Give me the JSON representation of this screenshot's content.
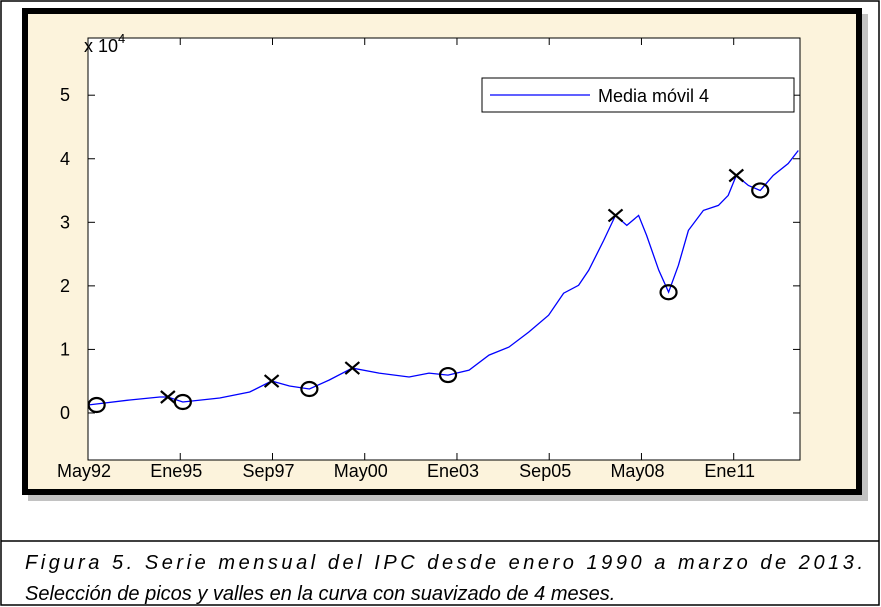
{
  "chart_data": {
    "type": "line",
    "series": [
      {
        "name": "Media móvil 4",
        "color": "#0000ff",
        "x": [
          28,
          42.5,
          52.9,
          55.7,
          60.9,
          73.7,
          84.1,
          91.7,
          97.9,
          104.8,
          111.7,
          119.7,
          129,
          139.4,
          146.3,
          152.9,
          160.2,
          167.1,
          174,
          180.9,
          187.8,
          193,
          198.2,
          201.7,
          206.9,
          211,
          214.9,
          219,
          221.8,
          226,
          229.4,
          232.8,
          236.3,
          241.5,
          246.7,
          250.1,
          252.9,
          257.1,
          261.2,
          265.7,
          270.9,
          274.4
        ],
        "values": [
          1256,
          2041,
          2512,
          2512,
          1727,
          2355,
          3297,
          5024,
          4239,
          3768,
          5181,
          7065,
          6280,
          5652,
          6280,
          5966,
          6751,
          9106,
          10362,
          12717,
          15386,
          18840,
          20096,
          22451,
          27161,
          31086,
          29516,
          31086,
          27946,
          22451,
          18997,
          23236,
          28731,
          31871,
          32656,
          34226,
          37366,
          35796,
          35011,
          37366,
          39250,
          41291
        ]
      }
    ],
    "peaks": {
      "marker": "x",
      "color": "#000000",
      "x": [
        55.7,
        91.7,
        119.7,
        211,
        252.9
      ],
      "values": [
        2512,
        5024,
        7065,
        31086,
        37366
      ]
    },
    "valleys": {
      "marker": "o",
      "color": "#000000",
      "x": [
        31,
        60.9,
        104.8,
        152.9,
        229.4,
        261.2
      ],
      "values": [
        1250,
        1727,
        3768,
        5966,
        18997,
        35011
      ]
    },
    "xlim": [
      28,
      275
    ],
    "xticks": [
      {
        "value": 28,
        "label": "May92"
      },
      {
        "value": 60,
        "label": "Ene95"
      },
      {
        "value": 92,
        "label": "Sep97"
      },
      {
        "value": 124,
        "label": "May00"
      },
      {
        "value": 156,
        "label": "Ene03"
      },
      {
        "value": 188,
        "label": "Sep05"
      },
      {
        "value": 220,
        "label": "May08"
      },
      {
        "value": 252,
        "label": "Ene11"
      }
    ],
    "ylim": [
      -7400,
      59000
    ],
    "yticks": [
      {
        "value": 0,
        "label": "0"
      },
      {
        "value": 10000,
        "label": "1"
      },
      {
        "value": 20000,
        "label": "2"
      },
      {
        "value": 30000,
        "label": "3"
      },
      {
        "value": 40000,
        "label": "4"
      },
      {
        "value": 50000,
        "label": "5"
      }
    ],
    "y_scale_label": {
      "base": "x 10",
      "exponent": "4"
    },
    "legend": "upper right",
    "grid": false
  },
  "caption": [
    "Figura 5. Serie mensual del IPC desde enero 1990 a marzo de 2013.",
    "Selección de picos y valles en la curva con suavizado de 4 meses."
  ]
}
